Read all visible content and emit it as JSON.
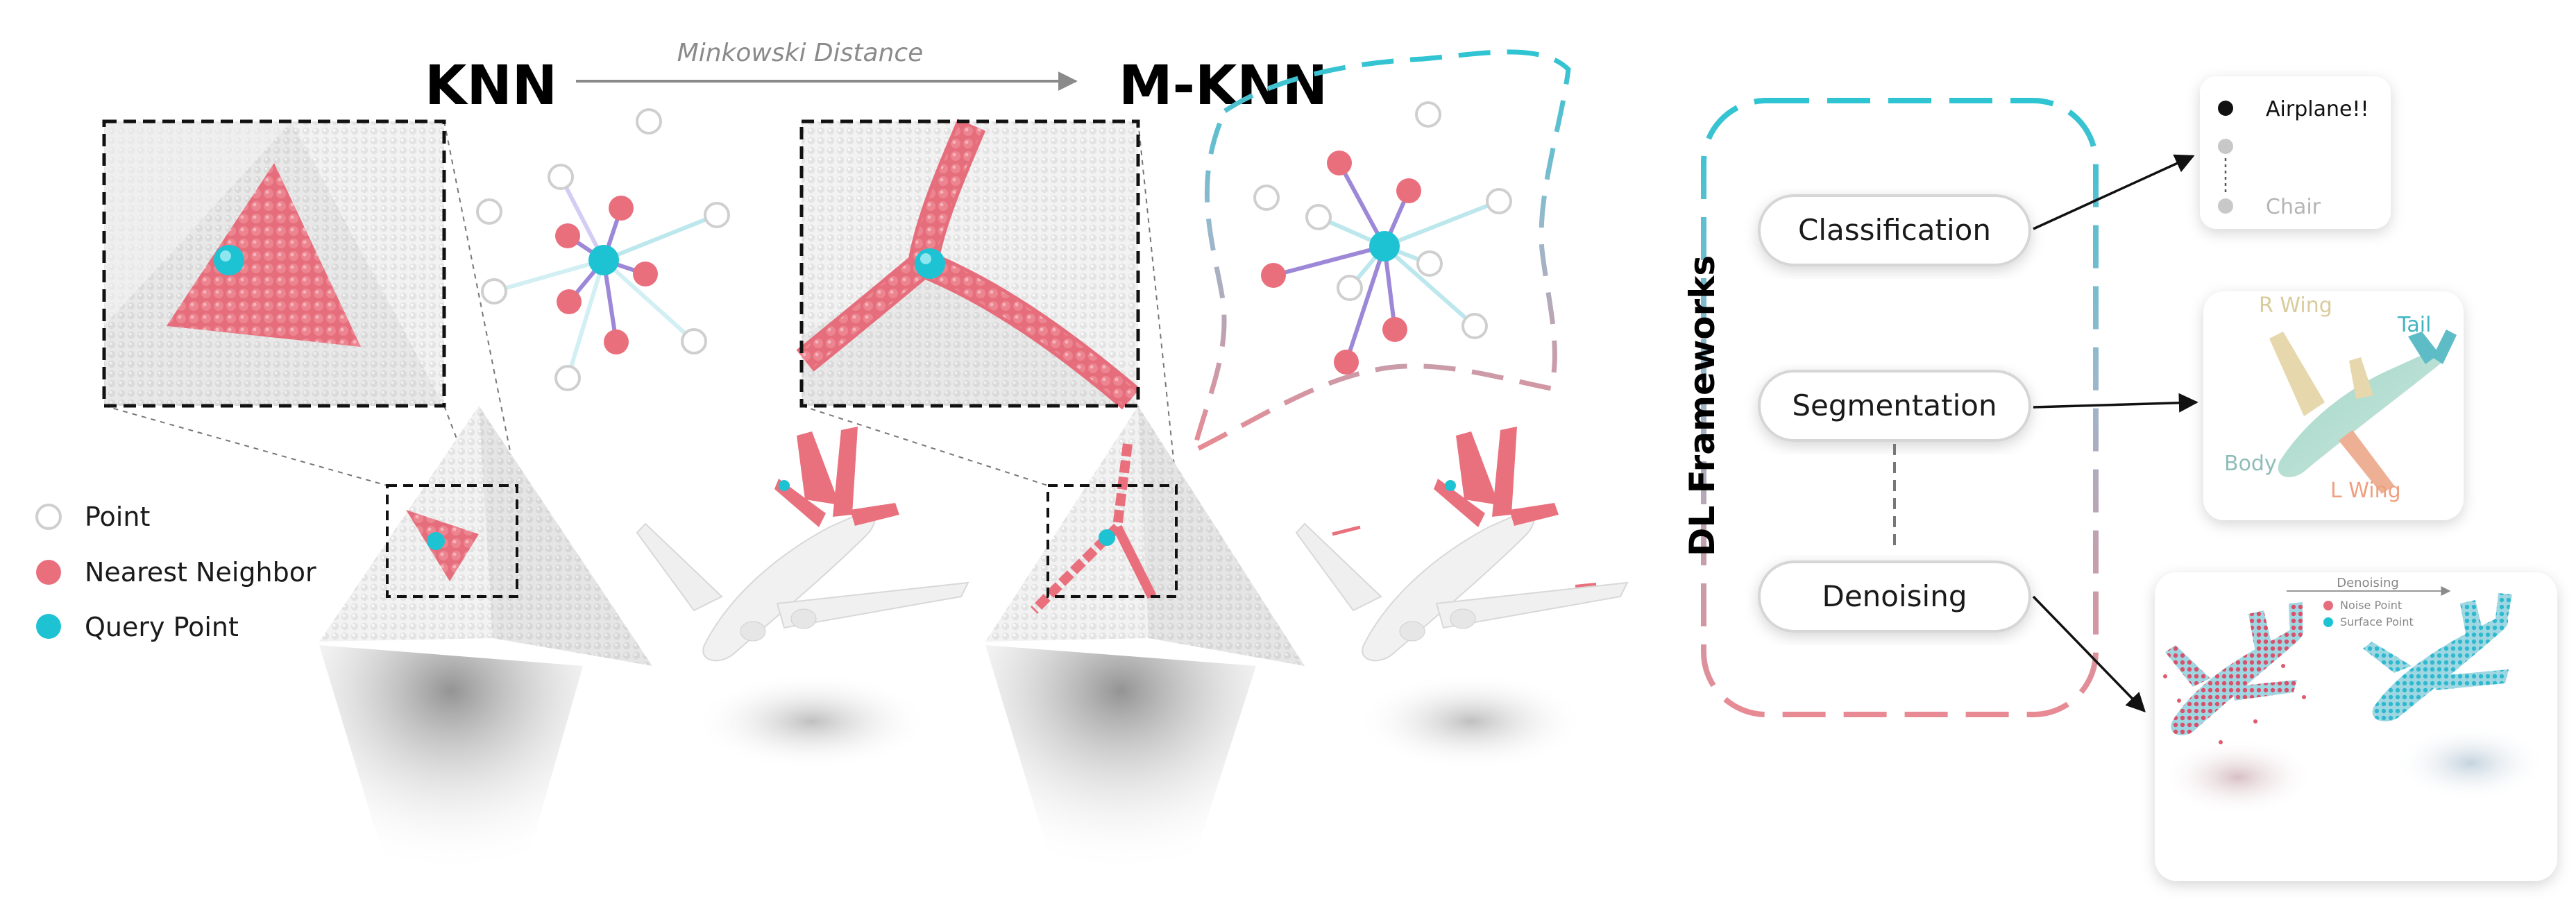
{
  "titles": {
    "left": "KNN",
    "right": "M-KNN",
    "arrow_label": "Minkowski Distance"
  },
  "legend": {
    "point": "Point",
    "neighbor": "Nearest Neighbor",
    "query": "Query Point"
  },
  "framework": {
    "title": "DL Frameworks",
    "classification": "Classification",
    "segmentation": "Segmentation",
    "denoising": "Denoising"
  },
  "outputs": {
    "class_top": "Airplane!!",
    "class_bottom": "Chair",
    "seg_r_wing": "R Wing",
    "seg_tail": "Tail",
    "seg_body": "Body",
    "seg_l_wing": "L Wing",
    "denoise_title": "Denoising",
    "denoise_noise": "Noise Point",
    "denoise_surface": "Surface Point"
  },
  "colors": {
    "neighbor": "#ea6f7d",
    "query": "#1ec3d3",
    "point_fill": "#ffffff",
    "point_stroke": "#cfcfcf",
    "frame_cyan": "#2ec4d2",
    "frame_pink": "#e88a93"
  }
}
